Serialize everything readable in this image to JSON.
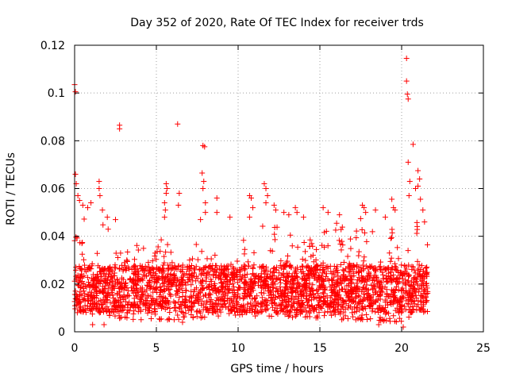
{
  "chart_data": {
    "type": "scatter",
    "title": "Day 352 of 2020, Rate Of TEC Index for receiver trds",
    "xlabel": "GPS time / hours",
    "ylabel": "ROTI / TECUs",
    "xlim": [
      0,
      25
    ],
    "ylim": [
      0,
      0.12
    ],
    "xticks": [
      0,
      5,
      10,
      15,
      20,
      25
    ],
    "xtick_labels": [
      "0",
      "5",
      "10",
      "15",
      "20",
      "25"
    ],
    "yticks": [
      0,
      0.02,
      0.04,
      0.06,
      0.08,
      0.1,
      0.12
    ],
    "ytick_labels": [
      "0",
      "0.02",
      "0.04",
      "0.06",
      "0.08",
      "0.1",
      "0.12"
    ],
    "grid": true,
    "marker": "+",
    "color": "#ff0000",
    "bulk": {
      "x_range": [
        0.0,
        21.6
      ],
      "typical_range": [
        0.008,
        0.028
      ],
      "upper_envelope": [
        [
          0.0,
          0.045
        ],
        [
          0.5,
          0.048
        ],
        [
          1.0,
          0.046
        ],
        [
          1.5,
          0.052
        ],
        [
          2.0,
          0.044
        ],
        [
          2.5,
          0.04
        ],
        [
          3.0,
          0.037
        ],
        [
          4.0,
          0.036
        ],
        [
          5.0,
          0.037
        ],
        [
          5.5,
          0.04
        ],
        [
          6.0,
          0.042
        ],
        [
          6.5,
          0.04
        ],
        [
          7.0,
          0.036
        ],
        [
          7.5,
          0.037
        ],
        [
          8.0,
          0.036
        ],
        [
          9.0,
          0.035
        ],
        [
          10.0,
          0.036
        ],
        [
          10.5,
          0.042
        ],
        [
          11.0,
          0.04
        ],
        [
          11.5,
          0.045
        ],
        [
          12.0,
          0.042
        ],
        [
          12.5,
          0.046
        ],
        [
          13.0,
          0.04
        ],
        [
          13.5,
          0.044
        ],
        [
          14.0,
          0.043
        ],
        [
          15.0,
          0.041
        ],
        [
          15.5,
          0.044
        ],
        [
          16.0,
          0.046
        ],
        [
          17.0,
          0.044
        ],
        [
          17.5,
          0.048
        ],
        [
          18.0,
          0.046
        ],
        [
          18.5,
          0.043
        ],
        [
          19.0,
          0.04
        ],
        [
          19.5,
          0.044
        ],
        [
          20.0,
          0.042
        ],
        [
          20.5,
          0.046
        ],
        [
          21.0,
          0.047
        ],
        [
          21.5,
          0.04
        ]
      ],
      "lower_envelope": [
        [
          0.0,
          0.008
        ],
        [
          2.0,
          0.006
        ],
        [
          4.0,
          0.005
        ],
        [
          6.0,
          0.005
        ],
        [
          8.0,
          0.006
        ],
        [
          10.0,
          0.007
        ],
        [
          12.0,
          0.006
        ],
        [
          14.0,
          0.006
        ],
        [
          16.0,
          0.005
        ],
        [
          18.0,
          0.005
        ],
        [
          20.0,
          0.004
        ],
        [
          21.5,
          0.007
        ]
      ]
    },
    "outliers": [
      {
        "x": 0.0,
        "y": 0.1035
      },
      {
        "x": 0.05,
        "y": 0.1005
      },
      {
        "x": 0.05,
        "y": 0.066
      },
      {
        "x": 0.1,
        "y": 0.062
      },
      {
        "x": 0.2,
        "y": 0.057
      },
      {
        "x": 0.3,
        "y": 0.055
      },
      {
        "x": 0.5,
        "y": 0.053
      },
      {
        "x": 0.8,
        "y": 0.052
      },
      {
        "x": 1.0,
        "y": 0.054
      },
      {
        "x": 1.5,
        "y": 0.063
      },
      {
        "x": 1.5,
        "y": 0.06
      },
      {
        "x": 1.55,
        "y": 0.057
      },
      {
        "x": 1.7,
        "y": 0.051
      },
      {
        "x": 2.0,
        "y": 0.048
      },
      {
        "x": 2.5,
        "y": 0.047
      },
      {
        "x": 2.75,
        "y": 0.0865
      },
      {
        "x": 2.75,
        "y": 0.085
      },
      {
        "x": 5.6,
        "y": 0.062
      },
      {
        "x": 5.65,
        "y": 0.06
      },
      {
        "x": 5.6,
        "y": 0.058
      },
      {
        "x": 5.5,
        "y": 0.054
      },
      {
        "x": 5.55,
        "y": 0.051
      },
      {
        "x": 5.5,
        "y": 0.048
      },
      {
        "x": 6.3,
        "y": 0.087
      },
      {
        "x": 6.4,
        "y": 0.058
      },
      {
        "x": 6.35,
        "y": 0.053
      },
      {
        "x": 7.85,
        "y": 0.078
      },
      {
        "x": 7.95,
        "y": 0.0775
      },
      {
        "x": 7.8,
        "y": 0.0665
      },
      {
        "x": 7.9,
        "y": 0.063
      },
      {
        "x": 7.85,
        "y": 0.06
      },
      {
        "x": 8.0,
        "y": 0.054
      },
      {
        "x": 8.0,
        "y": 0.05
      },
      {
        "x": 7.7,
        "y": 0.047
      },
      {
        "x": 8.7,
        "y": 0.056
      },
      {
        "x": 8.7,
        "y": 0.05
      },
      {
        "x": 9.5,
        "y": 0.048
      },
      {
        "x": 10.7,
        "y": 0.057
      },
      {
        "x": 10.8,
        "y": 0.056
      },
      {
        "x": 10.9,
        "y": 0.052
      },
      {
        "x": 10.7,
        "y": 0.048
      },
      {
        "x": 11.6,
        "y": 0.062
      },
      {
        "x": 11.7,
        "y": 0.06
      },
      {
        "x": 11.8,
        "y": 0.057
      },
      {
        "x": 11.7,
        "y": 0.054
      },
      {
        "x": 12.2,
        "y": 0.053
      },
      {
        "x": 12.3,
        "y": 0.051
      },
      {
        "x": 12.8,
        "y": 0.05
      },
      {
        "x": 13.1,
        "y": 0.049
      },
      {
        "x": 13.5,
        "y": 0.052
      },
      {
        "x": 13.6,
        "y": 0.05
      },
      {
        "x": 14.0,
        "y": 0.048
      },
      {
        "x": 15.5,
        "y": 0.05
      },
      {
        "x": 15.2,
        "y": 0.052
      },
      {
        "x": 16.2,
        "y": 0.049
      },
      {
        "x": 17.6,
        "y": 0.053
      },
      {
        "x": 17.7,
        "y": 0.052
      },
      {
        "x": 17.8,
        "y": 0.05
      },
      {
        "x": 18.4,
        "y": 0.051
      },
      {
        "x": 19.0,
        "y": 0.048
      },
      {
        "x": 19.4,
        "y": 0.0555
      },
      {
        "x": 19.5,
        "y": 0.052
      },
      {
        "x": 19.6,
        "y": 0.051
      },
      {
        "x": 20.3,
        "y": 0.1145
      },
      {
        "x": 20.3,
        "y": 0.105
      },
      {
        "x": 20.35,
        "y": 0.0995
      },
      {
        "x": 20.4,
        "y": 0.0975
      },
      {
        "x": 20.7,
        "y": 0.0785
      },
      {
        "x": 20.4,
        "y": 0.071
      },
      {
        "x": 20.5,
        "y": 0.063
      },
      {
        "x": 20.45,
        "y": 0.057
      },
      {
        "x": 21.0,
        "y": 0.0675
      },
      {
        "x": 21.1,
        "y": 0.064
      },
      {
        "x": 21.0,
        "y": 0.061
      },
      {
        "x": 20.85,
        "y": 0.06
      },
      {
        "x": 21.15,
        "y": 0.0555
      },
      {
        "x": 21.3,
        "y": 0.051
      },
      {
        "x": 21.4,
        "y": 0.046
      },
      {
        "x": 20.1,
        "y": 0.002
      },
      {
        "x": 18.6,
        "y": 0.003
      },
      {
        "x": 1.1,
        "y": 0.003
      },
      {
        "x": 1.8,
        "y": 0.003
      },
      {
        "x": 6.6,
        "y": 0.004
      }
    ]
  }
}
